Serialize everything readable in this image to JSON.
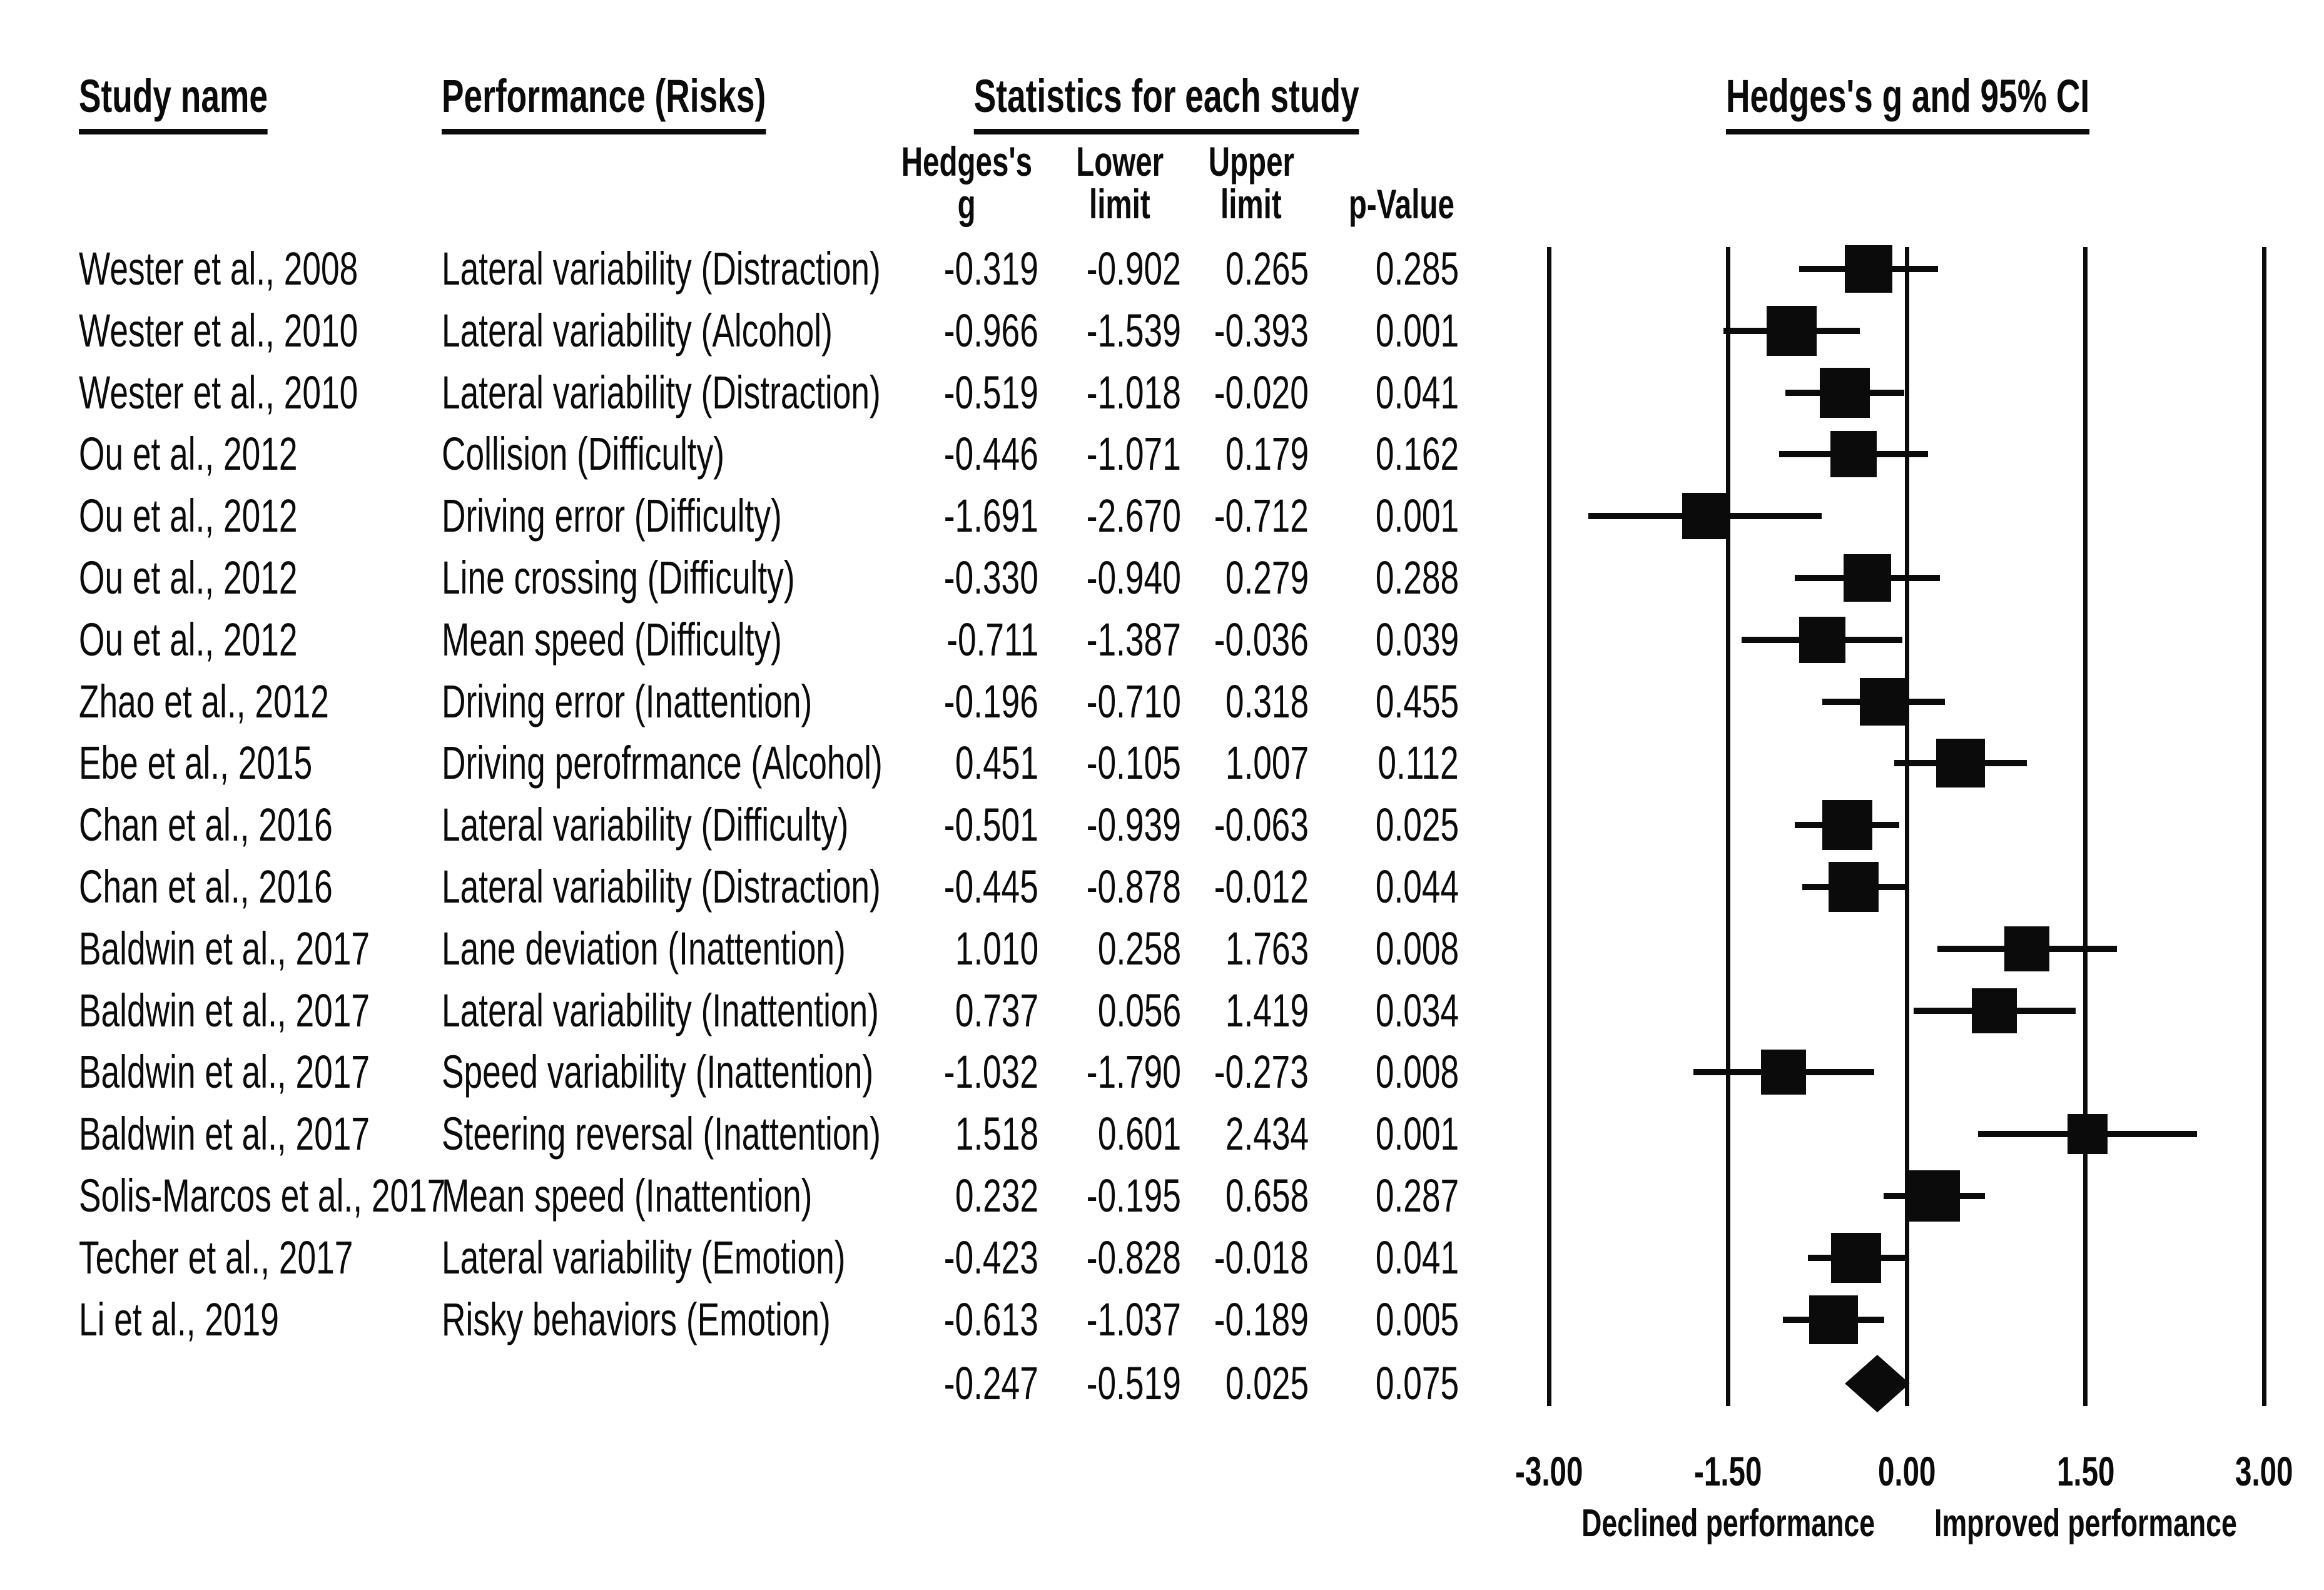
{
  "headers": {
    "study_name": "Study name",
    "performance": "Performance (Risks)",
    "statistics": "Statistics for each study",
    "plot": "Hedges's g and 95% CI"
  },
  "stat_columns": [
    {
      "line1": "Hedges's",
      "line2": "g"
    },
    {
      "line1": "Lower",
      "line2": "limit"
    },
    {
      "line1": "Upper",
      "line2": "limit"
    },
    {
      "line1": "",
      "line2": "p-Value"
    }
  ],
  "chart_data": {
    "type": "forest",
    "effect_label": "Hedges's g",
    "xlim": [
      -3.0,
      3.0
    ],
    "x_ticks": [
      -3.0,
      -1.5,
      0.0,
      1.5,
      3.0
    ],
    "x_tick_labels": [
      "-3.00",
      "-1.50",
      "0.00",
      "1.50",
      "3.00"
    ],
    "grid": "vertical-reference-lines",
    "axis_annotations": [
      {
        "label": "Declined performance",
        "x": -1.5
      },
      {
        "label": "Improved performance",
        "x": 1.5
      }
    ],
    "studies": [
      {
        "name": "Wester et al., 2008",
        "performance": "Lateral variability (Distraction)",
        "g": "-0.319",
        "lower": "-0.902",
        "upper": "0.265",
        "p": "0.285",
        "weight": 76
      },
      {
        "name": "Wester et al., 2010",
        "performance": "Lateral variability (Alcohol)",
        "g": "-0.966",
        "lower": "-1.539",
        "upper": "-0.393",
        "p": "0.001",
        "weight": 80
      },
      {
        "name": "Wester et al., 2010",
        "performance": "Lateral variability (Distraction)",
        "g": "-0.519",
        "lower": "-1.018",
        "upper": "-0.020",
        "p": "0.041",
        "weight": 80
      },
      {
        "name": "Ou et al., 2012",
        "performance": "Collision (Difficulty)",
        "g": "-0.446",
        "lower": "-1.071",
        "upper": "0.179",
        "p": "0.162",
        "weight": 74
      },
      {
        "name": "Ou et al., 2012",
        "performance": "Driving error (Difficulty)",
        "g": "-1.691",
        "lower": "-2.670",
        "upper": "-0.712",
        "p": "0.001",
        "weight": 74
      },
      {
        "name": "Ou et al., 2012",
        "performance": "Line crossing (Difficulty)",
        "g": "-0.330",
        "lower": "-0.940",
        "upper": "0.279",
        "p": "0.288",
        "weight": 76
      },
      {
        "name": "Ou et al., 2012",
        "performance": "Mean speed (Difficulty)",
        "g": "-0.711",
        "lower": "-1.387",
        "upper": "-0.036",
        "p": "0.039",
        "weight": 74
      },
      {
        "name": "Zhao et al., 2012",
        "performance": "Driving error (Inattention)",
        "g": "-0.196",
        "lower": "-0.710",
        "upper": "0.318",
        "p": "0.455",
        "weight": 76
      },
      {
        "name": "Ebe et al., 2015",
        "performance": "Driving perofrmance (Alcohol)",
        "g": "0.451",
        "lower": "-0.105",
        "upper": "1.007",
        "p": "0.112",
        "weight": 78
      },
      {
        "name": "Chan et al., 2016",
        "performance": "Lateral variability (Difficulty)",
        "g": "-0.501",
        "lower": "-0.939",
        "upper": "-0.063",
        "p": "0.025",
        "weight": 80
      },
      {
        "name": "Chan et al., 2016",
        "performance": "Lateral variability (Distraction)",
        "g": "-0.445",
        "lower": "-0.878",
        "upper": "-0.012",
        "p": "0.044",
        "weight": 80
      },
      {
        "name": "Baldwin et al., 2017",
        "performance": "Lane deviation (Inattention)",
        "g": "1.010",
        "lower": "0.258",
        "upper": "1.763",
        "p": "0.008",
        "weight": 72
      },
      {
        "name": "Baldwin et al., 2017",
        "performance": "Lateral variability (Inattention)",
        "g": "0.737",
        "lower": "0.056",
        "upper": "1.419",
        "p": "0.034",
        "weight": 72
      },
      {
        "name": "Baldwin et al., 2017",
        "performance": "Speed variability (Inattention)",
        "g": "-1.032",
        "lower": "-1.790",
        "upper": "-0.273",
        "p": "0.008",
        "weight": 72
      },
      {
        "name": "Baldwin et al., 2017",
        "performance": "Steering reversal (Inattention)",
        "g": "1.518",
        "lower": "0.601",
        "upper": "2.434",
        "p": "0.001",
        "weight": 64
      },
      {
        "name": "Solis-Marcos et al., 2017",
        "performance": "Mean speed (Inattention)",
        "g": "0.232",
        "lower": "-0.195",
        "upper": "0.658",
        "p": "0.287",
        "weight": 82
      },
      {
        "name": "Techer et al., 2017",
        "performance": "Lateral variability (Emotion)",
        "g": "-0.423",
        "lower": "-0.828",
        "upper": "-0.018",
        "p": "0.041",
        "weight": 80
      },
      {
        "name": "Li et al., 2019",
        "performance": "Risky behaviors (Emotion)",
        "g": "-0.613",
        "lower": "-1.037",
        "upper": "-0.189",
        "p": "0.005",
        "weight": 78
      }
    ],
    "summary": {
      "name": "",
      "performance": "",
      "g": "-0.247",
      "lower": "-0.519",
      "upper": "0.025",
      "p": "0.075",
      "marker": "diamond"
    },
    "colors": {
      "ink": "#0b0b0b",
      "background": "#ffffff"
    }
  }
}
